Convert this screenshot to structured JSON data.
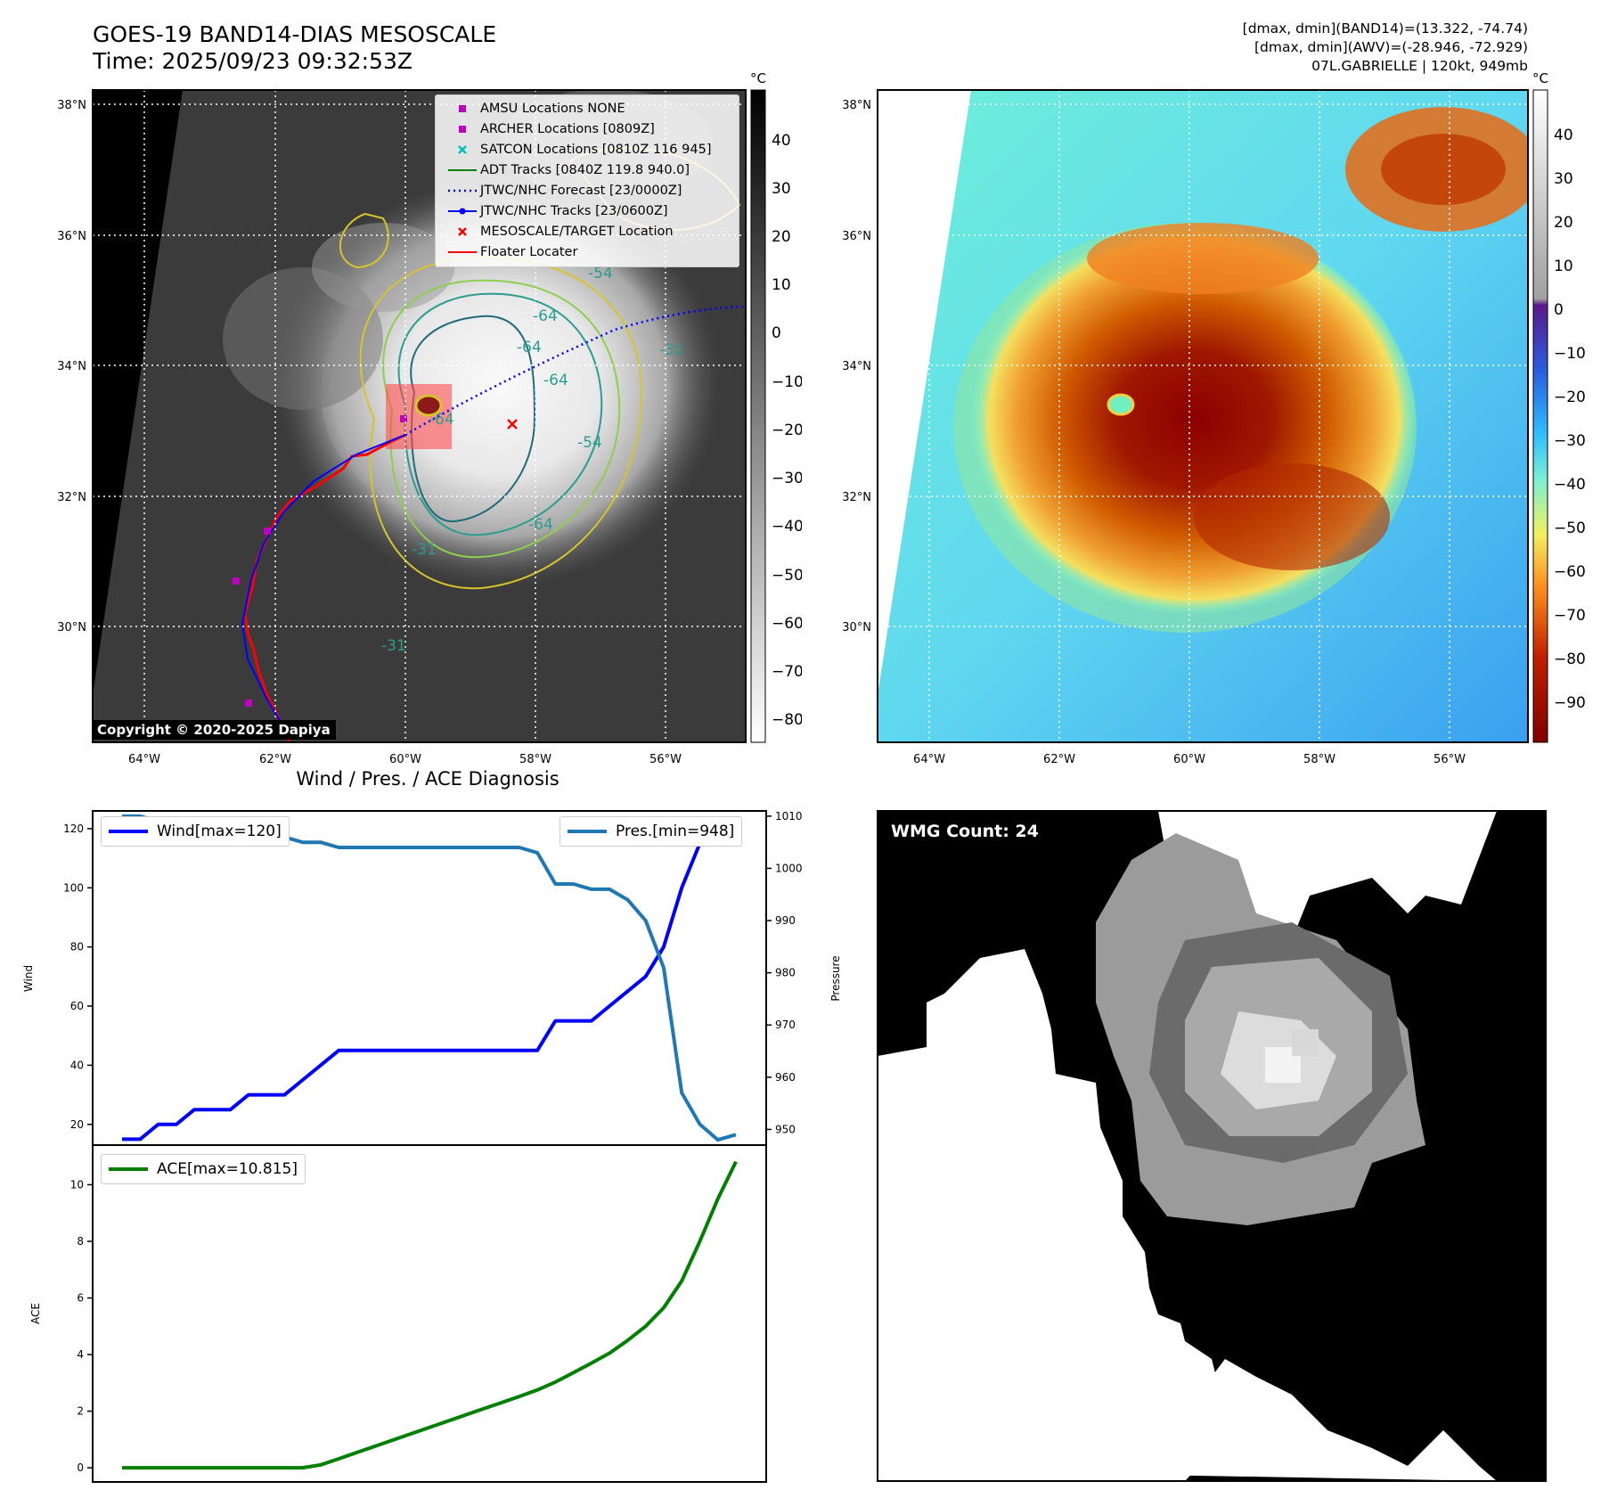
{
  "header": {
    "title_line1": "GOES-19 BAND14-DIAS MESOSCALE",
    "title_line2": "Time: 2025/09/23 09:32:53Z",
    "right_line1": "[dmax, dmin](BAND14)=(13.322, -74.74)",
    "right_line2": "[dmax, dmin](AWV)=(-28.946, -72.929)",
    "right_line3": "07L.GABRIELLE | 120kt, 949mb"
  },
  "map_left": {
    "lat_labels": [
      "38°N",
      "36°N",
      "34°N",
      "32°N",
      "30°N"
    ],
    "lon_labels": [
      "64°W",
      "62°W",
      "60°W",
      "58°W",
      "56°W"
    ],
    "colorbar_unit": "°C",
    "colorbar_ticks": [
      "40",
      "30",
      "20",
      "10",
      "0",
      "−10",
      "−20",
      "−30",
      "−40",
      "−50",
      "−60",
      "−70",
      "−80"
    ],
    "contour_labels": [
      "-54",
      "-64",
      "-64",
      "-64",
      "-54",
      "-31",
      "-31",
      "-31",
      "-64",
      "-64",
      "-54"
    ],
    "copyright": "Copyright © 2020-2025 Dapiya",
    "legend": [
      {
        "label": "AMSU Locations NONE",
        "marker": "square",
        "color": "#bf00bf"
      },
      {
        "label": "ARCHER Locations [0809Z]",
        "marker": "square",
        "color": "#bf00bf"
      },
      {
        "label": "SATCON Locations [0810Z 116 945]",
        "marker": "x",
        "color": "#00bfbf"
      },
      {
        "label": "ADT Tracks [0840Z 119.8 940.0]",
        "marker": "line",
        "color": "#008000"
      },
      {
        "label": "JTWC/NHC Forecast [23/0000Z]",
        "marker": "dotted",
        "color": "#0000ff"
      },
      {
        "label": "JTWC/NHC Tracks [23/0600Z]",
        "marker": "line-dot",
        "color": "#0000ff"
      },
      {
        "label": "MESOSCALE/TARGET Location",
        "marker": "x",
        "color": "#ff0000"
      },
      {
        "label": "Floater Locater",
        "marker": "line",
        "color": "#ff0000"
      }
    ]
  },
  "map_right": {
    "lat_labels": [
      "38°N",
      "36°N",
      "34°N",
      "32°N",
      "30°N"
    ],
    "lon_labels": [
      "64°W",
      "62°W",
      "60°W",
      "58°W",
      "56°W"
    ],
    "colorbar_unit": "°C",
    "colorbar_ticks": [
      "40",
      "30",
      "20",
      "10",
      "0",
      "−10",
      "−20",
      "−30",
      "−40",
      "−50",
      "−60",
      "−70",
      "−80",
      "−90"
    ]
  },
  "diagnosis": {
    "title": "Wind / Pres. / ACE Diagnosis",
    "wind_legend": "Wind[max=120]",
    "pres_legend": "Pres.[min=948]",
    "ace_legend": "ACE[max=10.815]",
    "wind_axis_label": "Wind",
    "pres_axis_label": "Pressure",
    "ace_axis_label": "ACE"
  },
  "wmg": {
    "label": "WMG Count: 24"
  },
  "chart_data": [
    {
      "type": "line",
      "title": "Wind / Pres. / ACE Diagnosis",
      "ylabel": "Wind",
      "ylim": [
        13,
        126
      ],
      "y_ticks": [
        20,
        40,
        60,
        80,
        100,
        120
      ],
      "series": [
        {
          "name": "Wind[max=120]",
          "color": "#0000ff",
          "axis": "left",
          "values": [
            15,
            15,
            20,
            20,
            25,
            25,
            25,
            30,
            30,
            30,
            35,
            40,
            45,
            45,
            45,
            45,
            45,
            45,
            45,
            45,
            45,
            45,
            45,
            45,
            55,
            55,
            55,
            60,
            65,
            70,
            80,
            100,
            115,
            120,
            120
          ]
        }
      ]
    },
    {
      "type": "line",
      "ylabel": "Pressure",
      "ylim": [
        947,
        1011
      ],
      "y_ticks": [
        950,
        960,
        970,
        980,
        990,
        1000,
        1010
      ],
      "series": [
        {
          "name": "Pres.[min=948]",
          "color": "#1f77b4",
          "axis": "right",
          "values": [
            1010,
            1010,
            1009,
            1009,
            1008,
            1008,
            1007,
            1006,
            1006,
            1006,
            1005,
            1005,
            1004,
            1004,
            1004,
            1004,
            1004,
            1004,
            1004,
            1004,
            1004,
            1004,
            1004,
            1003,
            997,
            997,
            996,
            996,
            994,
            990,
            981,
            957,
            951,
            948,
            949
          ]
        }
      ]
    },
    {
      "type": "line",
      "ylabel": "ACE",
      "ylim": [
        -0.5,
        11.4
      ],
      "y_ticks": [
        0,
        2,
        4,
        6,
        8,
        10
      ],
      "series": [
        {
          "name": "ACE[max=10.815]",
          "color": "#008000",
          "values": [
            0,
            0,
            0,
            0,
            0,
            0,
            0,
            0,
            0,
            0,
            0,
            0.1,
            0.32,
            0.54,
            0.76,
            0.98,
            1.2,
            1.42,
            1.64,
            1.86,
            2.08,
            2.3,
            2.52,
            2.75,
            3.03,
            3.36,
            3.7,
            4.05,
            4.5,
            5.0,
            5.65,
            6.6,
            8.0,
            9.5,
            10.815
          ]
        }
      ]
    }
  ]
}
